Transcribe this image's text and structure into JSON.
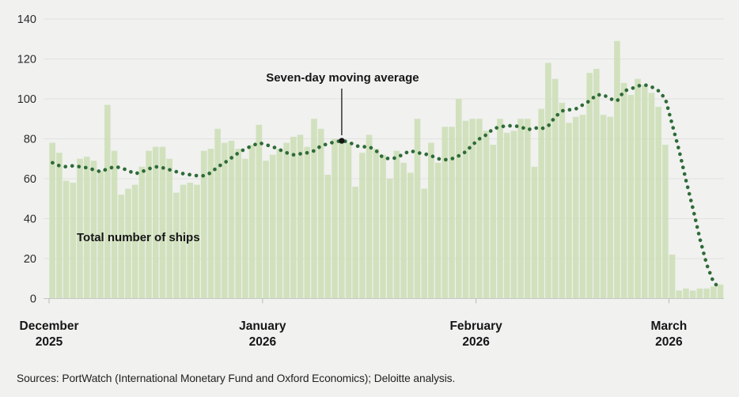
{
  "chart_data": {
    "type": "bar",
    "title": "",
    "xlabel": "",
    "ylabel": "",
    "ylim": [
      0,
      140
    ],
    "yticks": [
      0,
      20,
      40,
      60,
      80,
      100,
      120,
      140
    ],
    "grid": true,
    "x_months": [
      {
        "label": "December",
        "year": "2025",
        "start_day_index": 0
      },
      {
        "label": "January",
        "year": "2026",
        "start_day_index": 31
      },
      {
        "label": "February",
        "year": "2026",
        "start_day_index": 62
      },
      {
        "label": "March",
        "year": "2026",
        "start_day_index": 90
      }
    ],
    "series": [
      {
        "name": "Total number of ships",
        "type": "bar",
        "color": "#c8dcae",
        "values": [
          78,
          73,
          59,
          58,
          70,
          71,
          69,
          64,
          97,
          74,
          52,
          55,
          57,
          66,
          74,
          76,
          76,
          70,
          53,
          57,
          58,
          57,
          74,
          75,
          85,
          78,
          79,
          75,
          70,
          77,
          87,
          69,
          72,
          75,
          78,
          81,
          82,
          76,
          90,
          85,
          62,
          80,
          79,
          78,
          56,
          73,
          82,
          75,
          72,
          60,
          74,
          68,
          63,
          90,
          55,
          78,
          68,
          86,
          86,
          100,
          89,
          90,
          90,
          84,
          77,
          90,
          83,
          84,
          90,
          90,
          66,
          95,
          118,
          110,
          98,
          88,
          91,
          92,
          113,
          115,
          92,
          91,
          129,
          108,
          102,
          110,
          107,
          103,
          96,
          77,
          22,
          4,
          5,
          4,
          5,
          5,
          6,
          7
        ]
      },
      {
        "name": "Seven-day moving average",
        "type": "dotted_line",
        "color": "#2e6b38",
        "values": [
          68,
          66.5,
          66,
          66.5,
          66,
          65.5,
          64.5,
          63.5,
          65,
          66,
          65.5,
          64,
          62.5,
          63.5,
          65,
          66,
          65.5,
          64.5,
          63.5,
          62.5,
          62,
          61.5,
          61.5,
          63,
          66,
          68,
          70.5,
          73,
          75,
          76.5,
          78,
          77,
          76,
          74.5,
          73,
          72,
          72.5,
          73,
          74,
          76.5,
          77.5,
          78.5,
          79,
          78.5,
          76.5,
          76,
          76,
          74,
          70.5,
          70,
          70.5,
          72.5,
          74,
          73,
          72.5,
          71.5,
          70,
          69.5,
          70,
          71.5,
          73.5,
          77,
          80,
          82,
          85,
          86,
          86.5,
          86.5,
          86,
          84.5,
          85.5,
          85,
          86.5,
          91,
          94,
          94.5,
          95,
          97,
          99,
          102,
          102,
          100,
          99,
          104,
          105,
          106.5,
          107,
          106,
          104,
          100,
          87,
          74,
          59,
          45,
          30,
          17,
          8,
          5
        ]
      }
    ],
    "annotations": {
      "line_label": {
        "text": "Seven-day moving average",
        "day_index": 42,
        "marker_color": "#161616"
      },
      "bar_label": {
        "text": "Total number of ships"
      }
    },
    "legend_position": "inline-annotations"
  },
  "source": "Sources: PortWatch (International Monetary Fund and Oxford Economics); Deloitte analysis.",
  "colors": {
    "background": "#f1f1f0",
    "bar_fill": "#c8dcae",
    "dot_line": "#2e6b38",
    "gridline": "#e1e1df",
    "baseline": "#c7c7c5",
    "tick": "#b9b9b7",
    "axis_text": "#2b2b2b",
    "label_text": "#161616"
  }
}
